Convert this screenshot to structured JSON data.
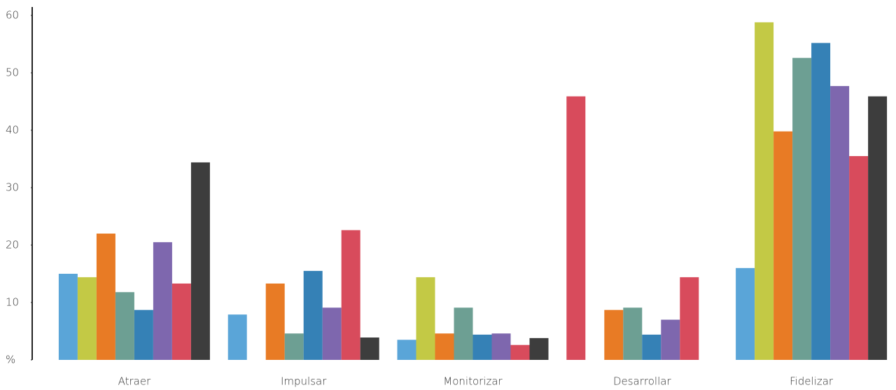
{
  "chart_data": {
    "type": "bar",
    "categories": [
      "Atraer",
      "Impulsar",
      "Monitorizar",
      "Desarrollar",
      "Fidelizar"
    ],
    "series": [
      {
        "color": "#5aa5d8",
        "colors": [
          "#5aa5d8",
          "#5aa5d8",
          "#5aa5d8",
          "#d84b5c",
          "#5aa5d8"
        ],
        "values": [
          15,
          7.9,
          3.5,
          45.9,
          16
        ]
      },
      {
        "color": "#c3c945",
        "values": [
          14.4,
          null,
          14.4,
          null,
          58.8
        ]
      },
      {
        "color": "#e87b25",
        "values": [
          22,
          13.3,
          4.6,
          8.7,
          39.8
        ]
      },
      {
        "color": "#6d9f93",
        "values": [
          11.8,
          4.6,
          9.1,
          9.1,
          52.6
        ]
      },
      {
        "color": "#3581b6",
        "values": [
          8.7,
          15.5,
          4.4,
          4.4,
          55.2
        ]
      },
      {
        "color": "#7e67ae",
        "values": [
          20.5,
          9.1,
          4.6,
          7,
          47.7
        ]
      },
      {
        "color": "#d84b5c",
        "values": [
          13.3,
          22.6,
          2.6,
          14.4,
          35.5
        ]
      },
      {
        "color": "#3d3d3d",
        "values": [
          34.4,
          3.9,
          3.8,
          null,
          45.9
        ]
      }
    ],
    "ylim": [
      0,
      60
    ],
    "yticks": [
      {
        "value": 0,
        "label": "%"
      },
      10,
      20,
      30,
      40,
      50,
      60
    ],
    "grid": false
  }
}
